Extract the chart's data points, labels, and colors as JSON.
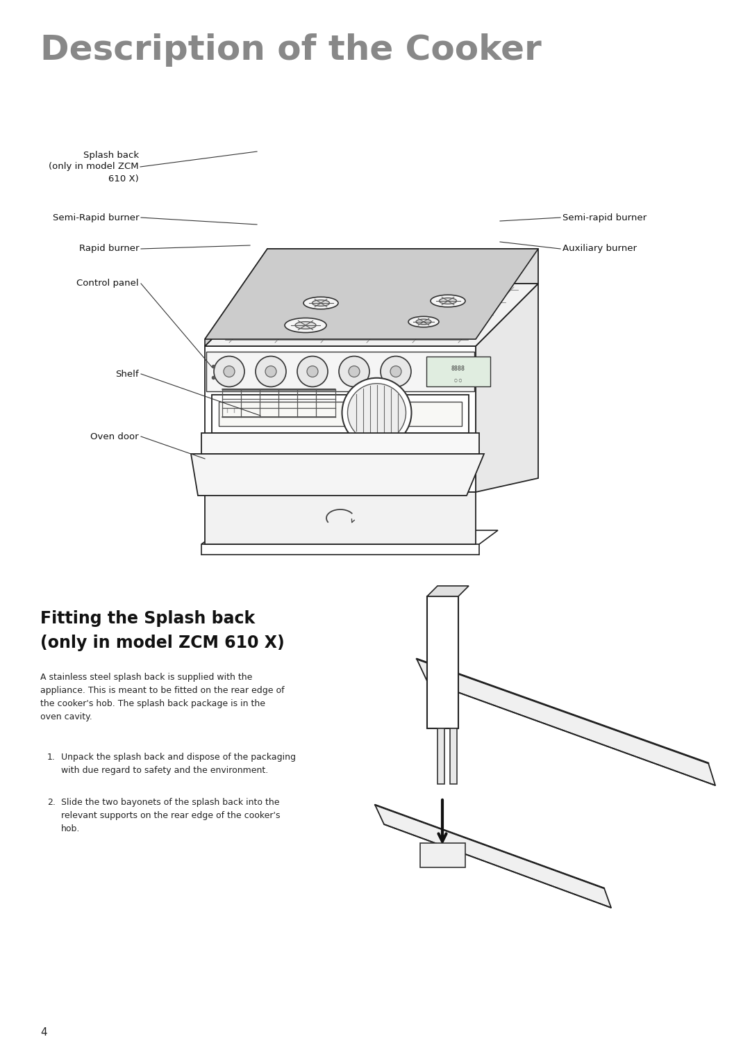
{
  "title": "Description of the Cooker",
  "title_fontsize": 36,
  "title_color": "#888888",
  "title_bold": true,
  "background_color": "#ffffff",
  "page_number": "4",
  "section2_title_line1": "Fitting the Splash back",
  "section2_title_line2": "(only in model ZCM 610 X)",
  "section2_title_fontsize": 17,
  "section2_body": "A stainless steel splash back is supplied with the\nappliance. This is meant to be fitted on the rear edge of\nthe cooker's hob. The splash back package is in the\noven cavity.",
  "section2_items": [
    "Unpack the splash back and dispose of the packaging\nwith due regard to safety and the environment.",
    "Slide the two bayonets of the splash back into the\nrelevant supports on the rear edge of the cooker's\nhob."
  ],
  "label_fontsize": 9.5,
  "body_fontsize": 9,
  "label_color": "#111111",
  "line_color": "#333333"
}
